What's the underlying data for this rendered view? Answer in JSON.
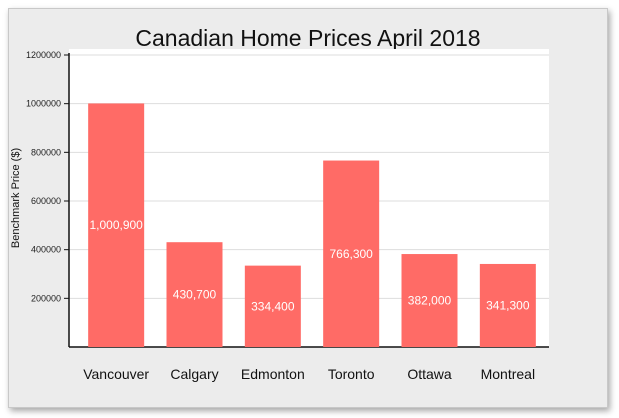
{
  "chart_data": {
    "type": "bar",
    "title": "Canadian Home Prices April 2018",
    "xlabel": "",
    "ylabel": "Benchmark Price ($)",
    "categories": [
      "Vancouver",
      "Calgary",
      "Edmonton",
      "Toronto",
      "Ottawa",
      "Montreal"
    ],
    "values": [
      1000900,
      430700,
      334400,
      766300,
      382000,
      341300
    ],
    "value_labels": [
      "1,000,900",
      "430,700",
      "334,400",
      "766,300",
      "382,000",
      "341,300"
    ],
    "ylim": [
      0,
      1200000
    ],
    "yticks": [
      200000,
      400000,
      600000,
      800000,
      1000000,
      1200000
    ],
    "ytick_labels": [
      "200000",
      "400000",
      "600000",
      "800000",
      "1000000",
      "1200000"
    ],
    "grid": true,
    "legend": "none",
    "colors": {
      "bar": "#ff6b66",
      "plot_background": "#ffffff",
      "card_background": "#ececec",
      "gridline": "#dddddd",
      "axis": "#111111",
      "value_label": "#ffffff"
    }
  }
}
